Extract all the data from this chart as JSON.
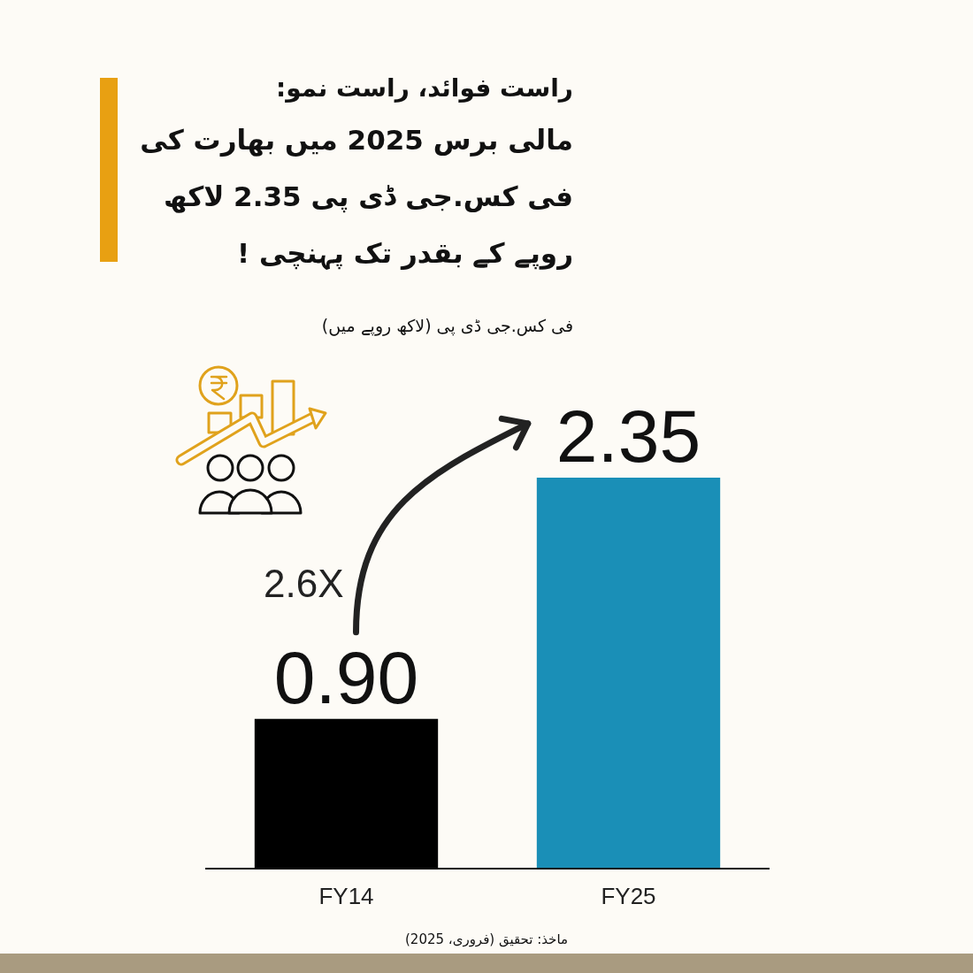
{
  "chart_data": {
    "type": "bar",
    "title": "راست فوائد، راست نمو:",
    "subtitle": "مالی برس 2025 میں بھارت کی فی کس.جی ڈی پی 2.35 لاکھ روپے کے بقدر تک پہنچی !",
    "categories": [
      "FY14",
      "FY25"
    ],
    "values": [
      0.9,
      2.35
    ],
    "colors": [
      "#000000",
      "#1a8fb7"
    ],
    "value_labels": [
      "0.90",
      "2.35"
    ],
    "annotations": [
      "2.6X",
      "فی کس.جی ڈی پی (لاکھ روپے میں)",
      "ماخذ: تحقیق (فروری، 2025)"
    ]
  }
}
